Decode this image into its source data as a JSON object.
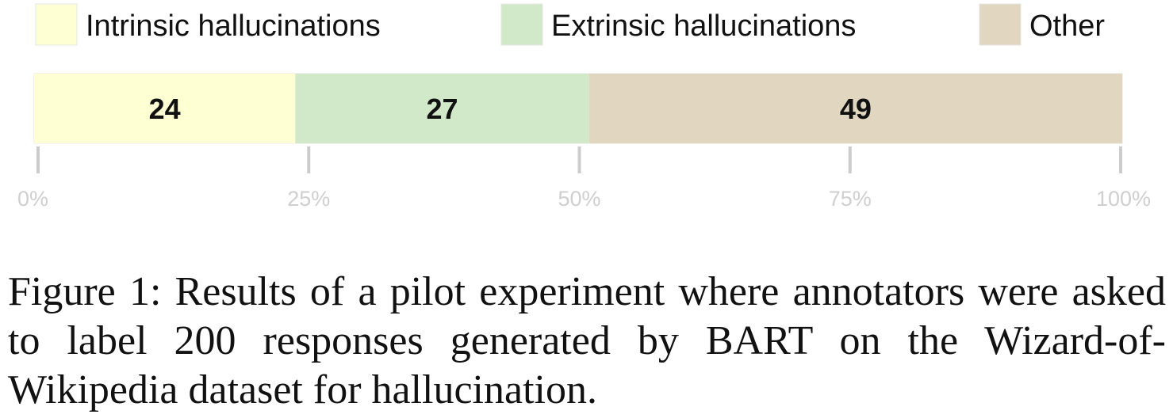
{
  "chart_data": {
    "type": "bar",
    "orientation": "horizontal-stacked",
    "categories": [
      "Intrinsic hallucinations",
      "Extrinsic hallucinations",
      "Other"
    ],
    "values": [
      24,
      27,
      49
    ],
    "data_labels": [
      "24",
      "27",
      "49"
    ],
    "colors": [
      "#ffffd4",
      "#d2e9c9",
      "#e1d6bf"
    ],
    "xlim": [
      0,
      100
    ],
    "ticks": [
      0,
      25,
      50,
      75,
      100
    ],
    "tick_labels": [
      "0%",
      "25%",
      "50%",
      "75%",
      "100%"
    ],
    "legend_position": "top",
    "grid": false
  },
  "caption": "Figure 1: Results of a pilot experiment where annotators were asked to label 200 responses generated by BART on the Wizard-of-Wikipedia dataset for hallucination."
}
